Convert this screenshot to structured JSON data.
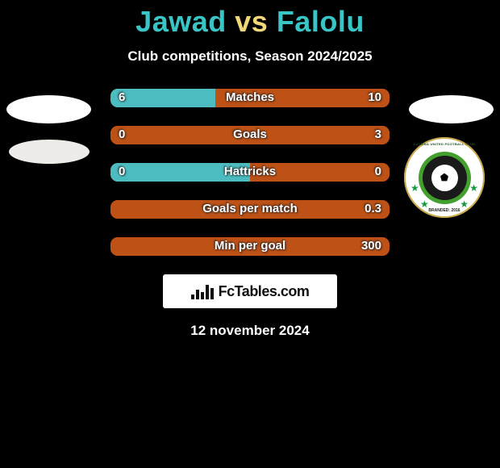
{
  "header": {
    "player1": "Jawad",
    "vs": "vs",
    "player2": "Falolu",
    "subtitle": "Club competitions, Season 2024/2025"
  },
  "colors": {
    "background": "#000000",
    "left_bar": "#4cbcc1",
    "right_bar": "#bd5116",
    "title_accent": "#39c4c6",
    "title_vs": "#f0d87a",
    "text_light": "#ffffff"
  },
  "bars": [
    {
      "label": "Matches",
      "left_val": "6",
      "right_val": "10",
      "left_pct": 37.5,
      "right_pct": 62.5
    },
    {
      "label": "Goals",
      "left_val": "0",
      "right_val": "3",
      "left_pct": 0,
      "right_pct": 100
    },
    {
      "label": "Hattricks",
      "left_val": "0",
      "right_val": "0",
      "left_pct": 50,
      "right_pct": 50
    },
    {
      "label": "Goals per match",
      "left_val": "",
      "right_val": "0.3",
      "left_pct": 0,
      "right_pct": 100
    },
    {
      "label": "Min per goal",
      "left_val": "",
      "right_val": "300",
      "left_pct": 0,
      "right_pct": 100
    }
  ],
  "crest": {
    "top_text": "KATSINA UNITED FOOTBALL CLUB",
    "bottom_text": "BRANDED: 2016"
  },
  "footer": {
    "brand": "FcTables.com",
    "date": "12 november 2024"
  }
}
